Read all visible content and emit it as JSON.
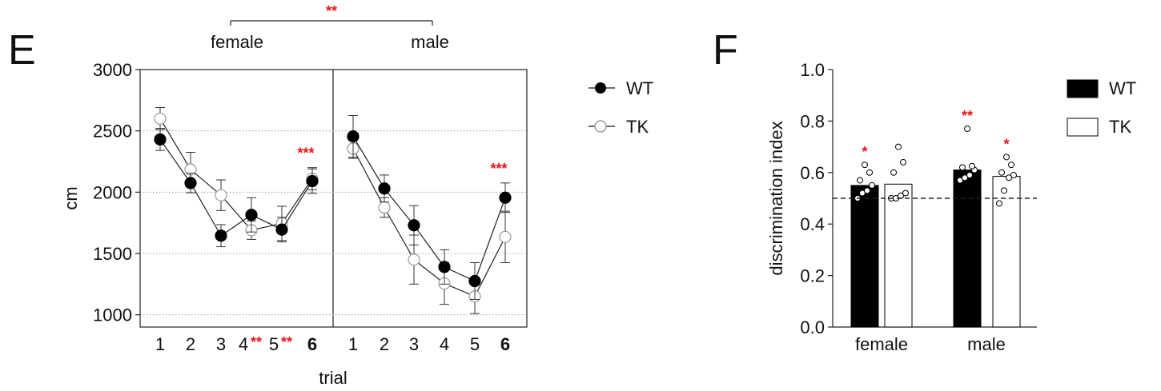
{
  "colors": {
    "black": "#000000",
    "white": "#ffffff",
    "significance": "#e8161b",
    "grid": "#888888"
  },
  "chart_data": [
    {
      "panel": "E",
      "type": "line",
      "ylabel": "cm",
      "xlabel": "trial",
      "ylim": [
        900,
        3000
      ],
      "yticks": [
        1000,
        1500,
        2000,
        2500,
        3000
      ],
      "grid": "horizontal dotted at 1000, 1500, 2000, 2500",
      "legend": {
        "position": "right",
        "entries": [
          "WT",
          "TK"
        ]
      },
      "group_comparison": {
        "left": "female",
        "right": "male",
        "stars": "**"
      },
      "groups": [
        {
          "name": "female",
          "x": [
            "1",
            "2",
            "3",
            "4",
            "5",
            "6"
          ],
          "trial_stars": [
            "",
            "",
            "",
            "**",
            "**",
            ""
          ],
          "emphasized_trial": "6",
          "marker_stars": [
            {
              "trial": "6",
              "text": "***"
            }
          ],
          "series": [
            {
              "name": "WT",
              "values": [
                2430,
                2075,
                1645,
                1815,
                1695,
                2090
              ],
              "errors": [
                90,
                80,
                90,
                140,
                100,
                100
              ]
            },
            {
              "name": "TK",
              "values": [
                2600,
                2185,
                1975,
                1690,
                1745,
                2110
              ],
              "errors": [
                90,
                140,
                125,
                75,
                140,
                90
              ]
            }
          ]
        },
        {
          "name": "male",
          "x": [
            "1",
            "2",
            "3",
            "4",
            "5",
            "6"
          ],
          "trial_stars": [
            "",
            "",
            "",
            "",
            "",
            ""
          ],
          "emphasized_trial": "6",
          "marker_stars": [
            {
              "trial": "6",
              "text": "***"
            }
          ],
          "series": [
            {
              "name": "WT",
              "values": [
                2455,
                2030,
                1730,
                1390,
                1275,
                1955
              ],
              "errors": [
                170,
                110,
                160,
                140,
                150,
                120
              ]
            },
            {
              "name": "TK",
              "values": [
                2355,
                1875,
                1450,
                1255,
                1150,
                1635
              ],
              "errors": [
                80,
                80,
                200,
                170,
                140,
                210
              ]
            }
          ]
        }
      ]
    },
    {
      "panel": "F",
      "type": "bar",
      "ylabel": "discrimination index",
      "ylim": [
        0,
        1.0
      ],
      "yticks": [
        "0.0",
        "0.2",
        "0.4",
        "0.6",
        "0.8",
        "1.0"
      ],
      "reference_line": 0.5,
      "categories": [
        "female",
        "male"
      ],
      "legend": {
        "position": "top-right",
        "entries": [
          "WT",
          "TK"
        ]
      },
      "series": [
        {
          "name": "WT",
          "values": [
            0.55,
            0.61
          ],
          "stars": [
            "*",
            "**"
          ],
          "points": [
            [
              0.5,
              0.52,
              0.53,
              0.55,
              0.57,
              0.6,
              0.63
            ],
            [
              0.57,
              0.58,
              0.59,
              0.61,
              0.62,
              0.625,
              0.77
            ]
          ]
        },
        {
          "name": "TK",
          "values": [
            0.555,
            0.585
          ],
          "stars": [
            "",
            "*"
          ],
          "points": [
            [
              0.5,
              0.5,
              0.51,
              0.52,
              0.6,
              0.64,
              0.7
            ],
            [
              0.48,
              0.53,
              0.58,
              0.59,
              0.6,
              0.63,
              0.66
            ]
          ]
        }
      ]
    }
  ],
  "panelE": {
    "letter": "E",
    "female_label": "female",
    "male_label": "male",
    "comparison_stars": "**",
    "ylabel": "cm",
    "xlabel": "trial",
    "legend_wt": "WT",
    "legend_tk": "TK"
  },
  "panelF": {
    "letter": "F",
    "ylabel": "discrimination index",
    "legend_wt": "WT",
    "legend_tk": "TK"
  }
}
